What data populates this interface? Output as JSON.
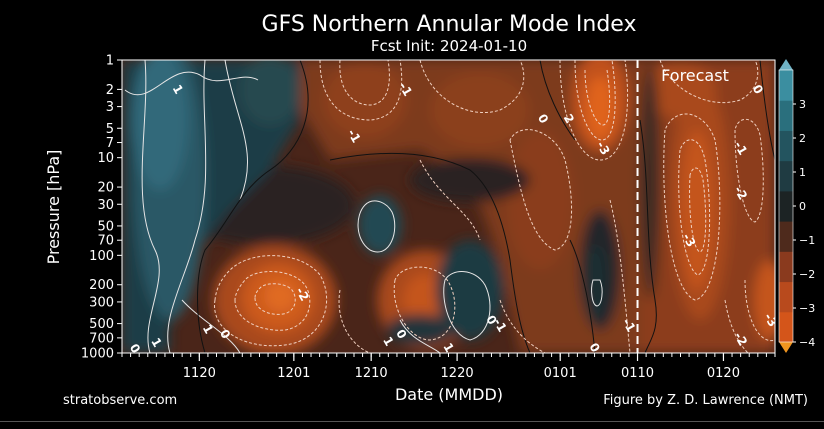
{
  "chart_data": {
    "type": "heatmap",
    "title": "GFS Northern Annular Mode Index",
    "subtitle": "Fcst Init: 2024-01-10",
    "xlabel": "Date (MMDD)",
    "ylabel": "Pressure [hPa]",
    "x_ticks": [
      "1120",
      "1201",
      "1210",
      "1220",
      "0101",
      "0110",
      "0120"
    ],
    "x_tick_days": [
      9,
      20,
      29,
      39,
      51,
      60,
      70
    ],
    "x_range_days": [
      0,
      76
    ],
    "y_ticks": [
      1,
      2,
      3,
      5,
      7,
      10,
      20,
      30,
      50,
      70,
      100,
      200,
      300,
      500,
      700,
      1000
    ],
    "y_range": [
      1000,
      1
    ],
    "y_scale": "log",
    "forecast_start_day": 60,
    "colorbar": {
      "ticks": [
        3,
        2,
        1,
        0,
        -1,
        -2,
        -3,
        -4
      ],
      "range": [
        -4,
        4
      ],
      "colors": [
        "#d4551a",
        "#b84a1d",
        "#8a3a1e",
        "#4e2a1c",
        "#1c2324",
        "#1f3b42",
        "#23545f",
        "#2a6f7d",
        "#3b8ea0"
      ]
    },
    "contour_labels": [
      {
        "text": "1",
        "day": 6.5,
        "p": 2
      },
      {
        "text": "-1",
        "day": 33,
        "p": 2
      },
      {
        "text": "-1",
        "day": 27,
        "p": 6
      },
      {
        "text": "0",
        "day": 49,
        "p": 4
      },
      {
        "text": "2",
        "day": 52,
        "p": 4
      },
      {
        "text": "-3",
        "day": 56,
        "p": 8
      },
      {
        "text": "-1",
        "day": 72,
        "p": 8
      },
      {
        "text": "0",
        "day": 74,
        "p": 2
      },
      {
        "text": "-2",
        "day": 72,
        "p": 23
      },
      {
        "text": "-3",
        "day": 66,
        "p": 70
      },
      {
        "text": "-2",
        "day": 21,
        "p": 250
      },
      {
        "text": "1",
        "day": 10,
        "p": 570
      },
      {
        "text": "0",
        "day": 12,
        "p": 640
      },
      {
        "text": "0",
        "day": 32.5,
        "p": 640
      },
      {
        "text": "0",
        "day": 43,
        "p": 460
      },
      {
        "text": "-1",
        "day": 44,
        "p": 520
      },
      {
        "text": "-1",
        "day": 59,
        "p": 520
      },
      {
        "text": "-3",
        "day": 75.5,
        "p": 460
      },
      {
        "text": "-2",
        "day": 72,
        "p": 720
      },
      {
        "text": "1",
        "day": 31,
        "p": 760
      },
      {
        "text": "1",
        "day": 38,
        "p": 880
      },
      {
        "text": "0",
        "day": 55,
        "p": 880
      },
      {
        "text": "0",
        "day": 1.5,
        "p": 900
      },
      {
        "text": "1",
        "day": 4,
        "p": 780
      }
    ]
  },
  "annotations": {
    "forecast_label": "Forecast",
    "credit_left": "stratobserve.com",
    "credit_right": "Figure by Z. D. Lawrence (NMT)"
  }
}
